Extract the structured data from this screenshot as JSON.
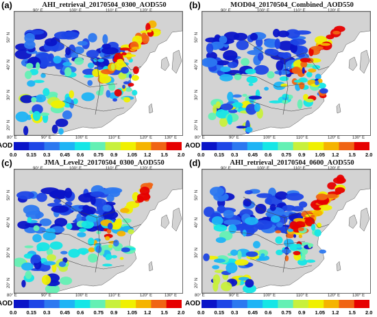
{
  "panels": [
    {
      "label": "(a)",
      "title": "AHI_retrieval_20170504_0300_AOD550"
    },
    {
      "label": "(b)",
      "title": "MOD04_20170504_Combined_AOD550"
    },
    {
      "label": "(c)",
      "title": "JMA_Level2_20170504_0300_AOD550"
    },
    {
      "label": "(d)",
      "title": "AHI_retrieval_20170504_0600_AOD550"
    }
  ],
  "map": {
    "lon_ticks": [
      "80° E",
      "90° E",
      "100° E",
      "110° E",
      "120° E",
      "130° E"
    ],
    "lat_ticks": [
      "20° N",
      "30° N",
      "40° N",
      "50° N"
    ],
    "land_color": "#d3d3d3",
    "ocean_color": "#ffffff"
  },
  "colorbar": {
    "label": "AOD",
    "ticks": [
      "0.0",
      "0.15",
      "0.3",
      "0.45",
      "0.6",
      "0.75",
      "0.9",
      "1.05",
      "1.2",
      "1.5",
      "2.0"
    ],
    "colors": [
      "#0a14c8",
      "#1e46e6",
      "#2c78f0",
      "#1eb4f5",
      "#14e6e6",
      "#64f0b4",
      "#c8f03c",
      "#f0f000",
      "#f5b400",
      "#f06414",
      "#e60000"
    ]
  }
}
